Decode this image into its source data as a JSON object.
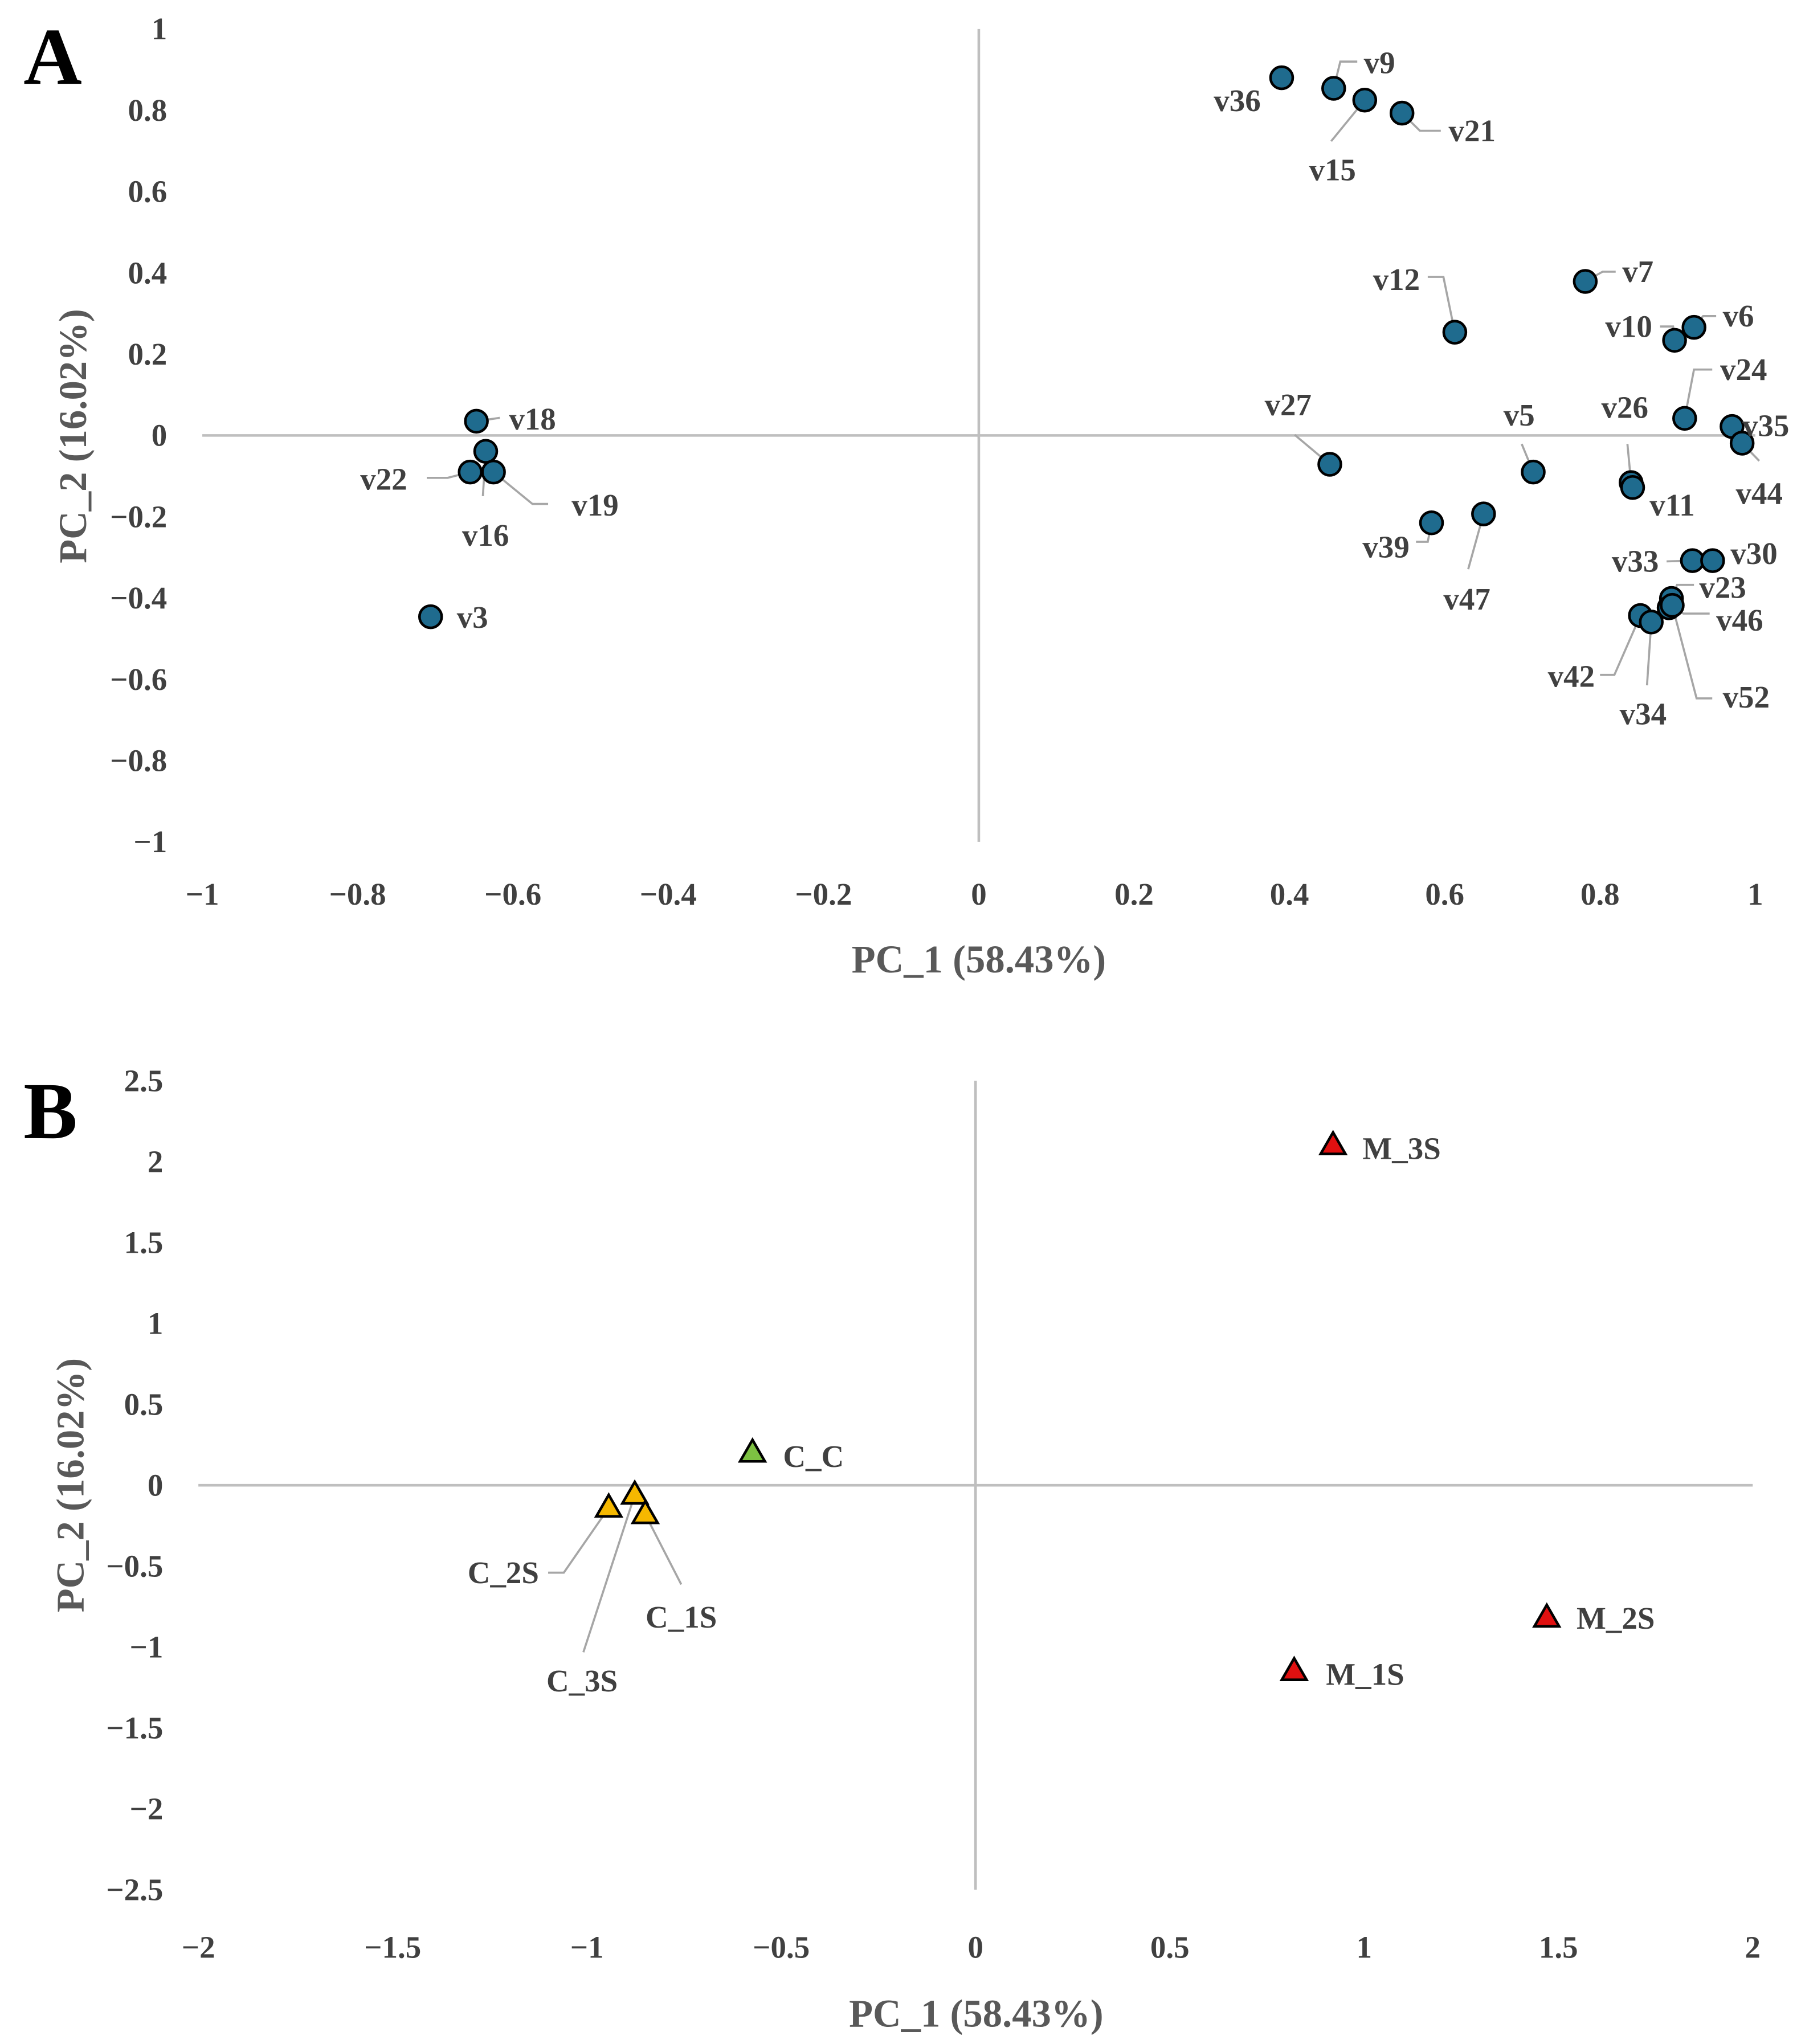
{
  "chart_data": [
    {
      "panel": "A",
      "type": "scatter",
      "xlabel": "PC_1 (58.43%)",
      "ylabel": "PC_2 (16.02%)",
      "xlim": [
        -1,
        1
      ],
      "ylim": [
        -1,
        1
      ],
      "xticks": [
        "−1",
        "−0.8",
        "−0.6",
        "−0.4",
        "−0.2",
        "0",
        "0.2",
        "0.4",
        "0.6",
        "0.8",
        "1"
      ],
      "xtick_values": [
        -1,
        -0.8,
        -0.6,
        -0.4,
        -0.2,
        0,
        0.2,
        0.4,
        0.6,
        0.8,
        1
      ],
      "yticks": [
        "1",
        "0.8",
        "0.6",
        "0.4",
        "0.2",
        "0",
        "−0.2",
        "−0.4",
        "−0.6",
        "−0.8",
        "−1"
      ],
      "ytick_values": [
        1,
        0.8,
        0.6,
        0.4,
        0.2,
        0,
        -0.2,
        -0.4,
        -0.6,
        -0.8,
        -1
      ],
      "marker": "circle",
      "color": "#1f6b8e",
      "points": [
        {
          "label": "v36",
          "x": 0.39,
          "y": 0.88
        },
        {
          "label": "v9",
          "x": 0.457,
          "y": 0.854
        },
        {
          "label": "v15",
          "x": 0.497,
          "y": 0.825
        },
        {
          "label": "v21",
          "x": 0.545,
          "y": 0.793
        },
        {
          "label": "v12",
          "x": 0.613,
          "y": 0.254
        },
        {
          "label": "v7",
          "x": 0.781,
          "y": 0.379
        },
        {
          "label": "v10",
          "x": 0.896,
          "y": 0.234
        },
        {
          "label": "v6",
          "x": 0.921,
          "y": 0.266
        },
        {
          "label": "v24",
          "x": 0.909,
          "y": 0.042
        },
        {
          "label": "v35",
          "x": 0.97,
          "y": 0.022
        },
        {
          "label": "v44",
          "x": 0.983,
          "y": -0.019
        },
        {
          "label": "v26",
          "x": 0.84,
          "y": -0.116
        },
        {
          "label": "v11",
          "x": 0.842,
          "y": -0.128
        },
        {
          "label": "v5",
          "x": 0.714,
          "y": -0.09
        },
        {
          "label": "v27",
          "x": 0.452,
          "y": -0.071
        },
        {
          "label": "v47",
          "x": 0.65,
          "y": -0.193
        },
        {
          "label": "v39",
          "x": 0.583,
          "y": -0.215
        },
        {
          "label": "v33",
          "x": 0.919,
          "y": -0.308
        },
        {
          "label": "v30",
          "x": 0.945,
          "y": -0.308
        },
        {
          "label": "v23",
          "x": 0.892,
          "y": -0.401
        },
        {
          "label": "v46",
          "x": 0.889,
          "y": -0.424
        },
        {
          "label": "v52",
          "x": 0.893,
          "y": -0.418
        },
        {
          "label": "v42",
          "x": 0.852,
          "y": -0.443
        },
        {
          "label": "v34",
          "x": 0.866,
          "y": -0.459
        },
        {
          "label": "v18",
          "x": -0.647,
          "y": 0.035
        },
        {
          "label": "v22",
          "x": -0.655,
          "y": -0.09
        },
        {
          "label": "v16",
          "x": -0.635,
          "y": -0.039
        },
        {
          "label": "v19",
          "x": -0.625,
          "y": -0.09
        },
        {
          "label": "v3",
          "x": -0.706,
          "y": -0.446
        }
      ]
    },
    {
      "panel": "B",
      "type": "scatter",
      "xlabel": "PC_1 (58.43%)",
      "ylabel": "PC_2 (16.02%)",
      "xlim": [
        -2,
        2
      ],
      "ylim": [
        -2.5,
        2.5
      ],
      "xticks": [
        "−2",
        "−1.5",
        "−1",
        "−0.5",
        "0",
        "0.5",
        "1",
        "1.5",
        "2"
      ],
      "xtick_values": [
        -2,
        -1.5,
        -1,
        -0.5,
        0,
        0.5,
        1,
        1.5,
        2
      ],
      "yticks": [
        "2.5",
        "2",
        "1.5",
        "1",
        "0.5",
        "0",
        "−0.5",
        "−1",
        "−1.5",
        "−2",
        "−2.5"
      ],
      "ytick_values": [
        2.5,
        2,
        1.5,
        1,
        0.5,
        0,
        -0.5,
        -1,
        -1.5,
        -2,
        -2.5
      ],
      "marker": "triangle",
      "points": [
        {
          "label": "M_3S",
          "x": 0.92,
          "y": 2.1,
          "color": "#e01010"
        },
        {
          "label": "M_2S",
          "x": 1.47,
          "y": -0.82,
          "color": "#e01010"
        },
        {
          "label": "M_1S",
          "x": 0.82,
          "y": -1.15,
          "color": "#e01010"
        },
        {
          "label": "C_C",
          "x": -0.574,
          "y": 0.2,
          "color": "#7dc142"
        },
        {
          "label": "C_2S",
          "x": -0.944,
          "y": -0.14,
          "color": "#f5b800"
        },
        {
          "label": "C_3S",
          "x": -0.877,
          "y": -0.06,
          "color": "#f5b800"
        },
        {
          "label": "C_1S",
          "x": -0.85,
          "y": -0.18,
          "color": "#f5b800"
        }
      ]
    }
  ]
}
